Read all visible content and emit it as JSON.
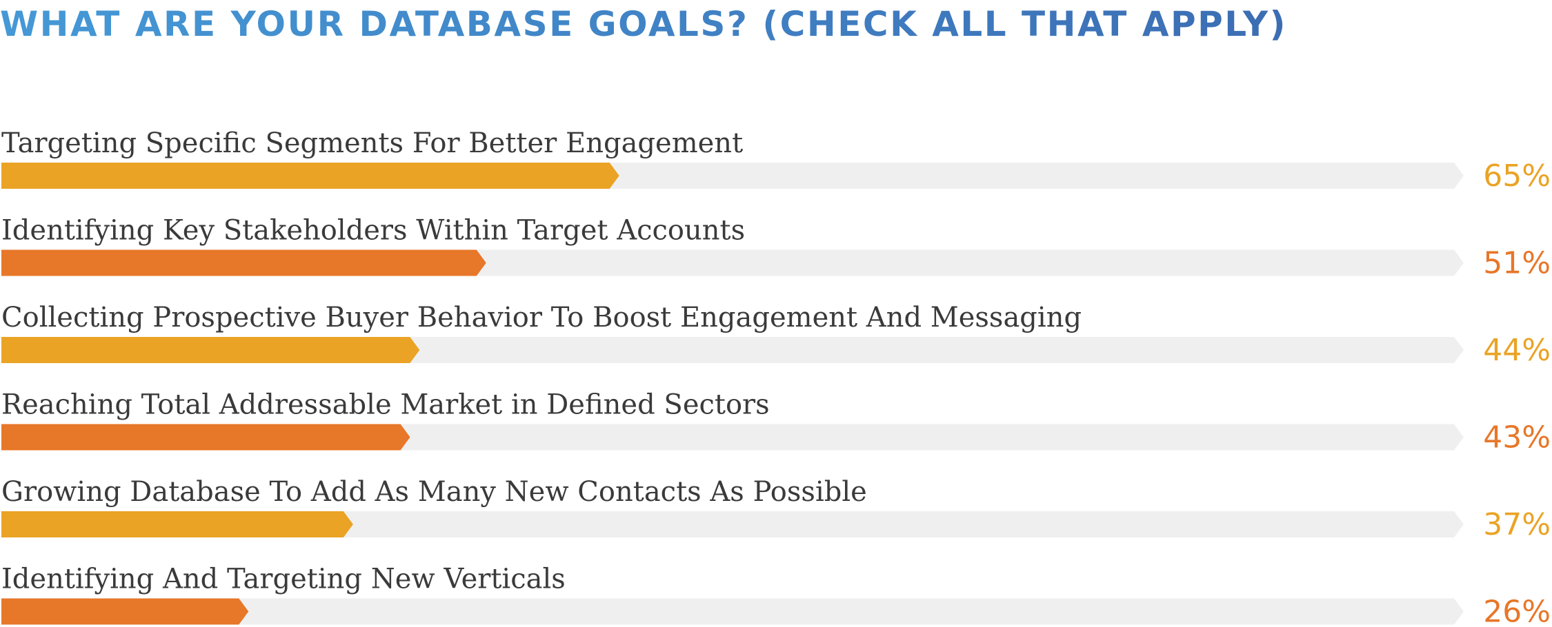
{
  "chart_data": {
    "type": "bar",
    "orientation": "horizontal",
    "title": "WHAT ARE YOUR DATABASE GOALS? (CHECK ALL THAT APPLY)",
    "xlim": [
      0,
      100
    ],
    "grid": false,
    "legend": "none",
    "unit": "%",
    "categories": [
      "Targeting Specific Segments For Better Engagement",
      "Identifying Key Stakeholders Within Target Accounts",
      "Collecting Prospective Buyer Behavior To Boost Engagement And Messaging",
      "Reaching Total Addressable Market in Defined Sectors",
      "Growing Database To Add As Many New Contacts As Possible",
      "Identifying And Targeting New Verticals"
    ],
    "values": [
      65,
      51,
      44,
      43,
      37,
      26
    ],
    "value_labels": [
      "65%",
      "51%",
      "44%",
      "43%",
      "37%",
      "26%"
    ],
    "bar_colors": [
      "#eaa325",
      "#e77729",
      "#eaa325",
      "#e77729",
      "#eaa325",
      "#e77729"
    ],
    "track_color": "#efefef",
    "title_color": "#3f7cc0"
  }
}
